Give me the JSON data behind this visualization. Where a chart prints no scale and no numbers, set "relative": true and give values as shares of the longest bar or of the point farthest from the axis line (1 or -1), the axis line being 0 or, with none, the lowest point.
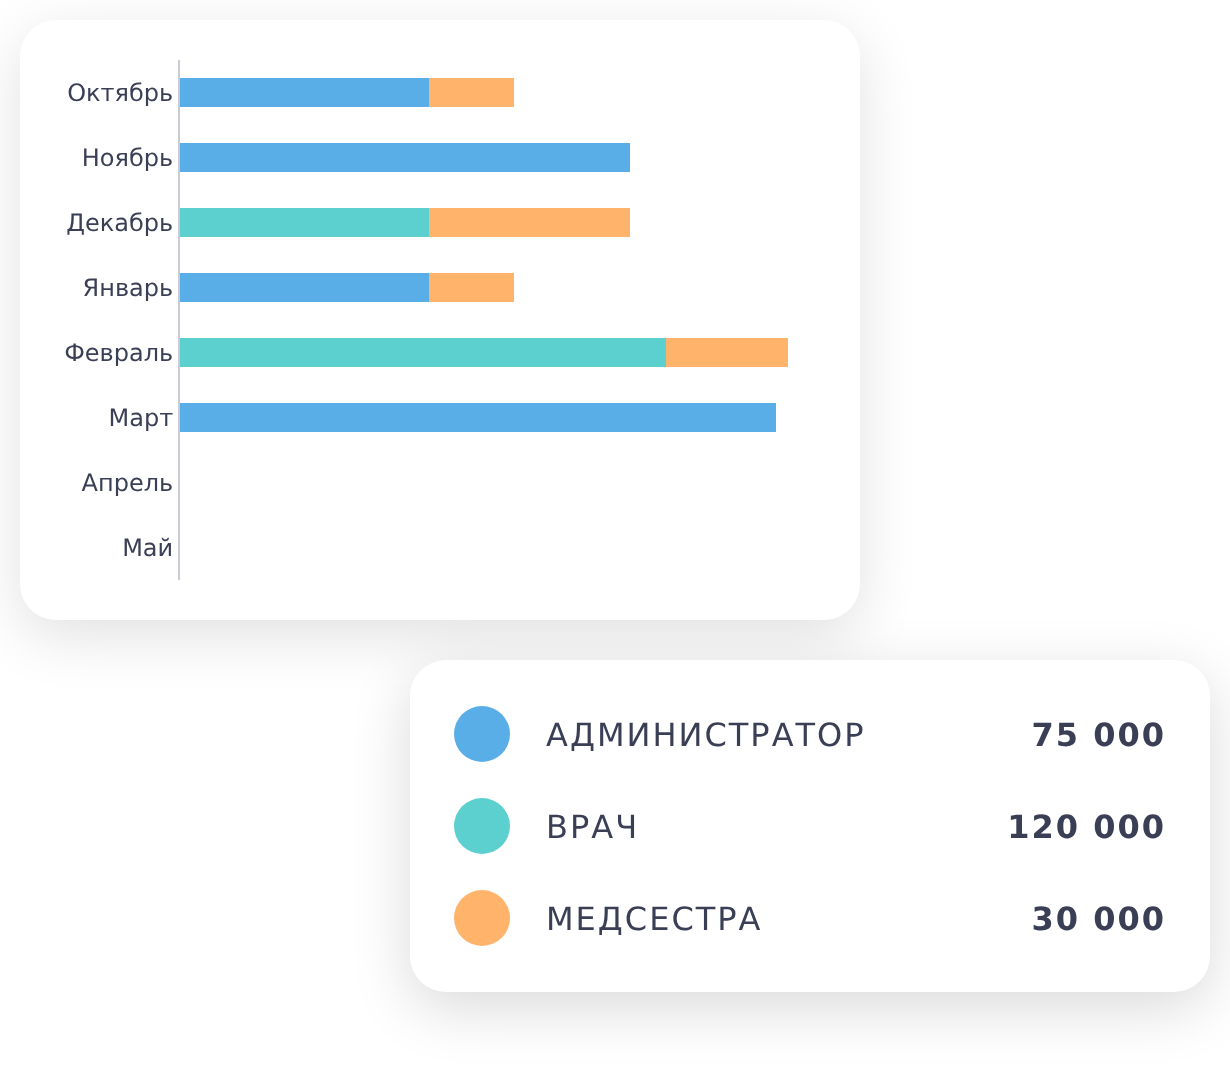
{
  "chart_data": {
    "type": "bar",
    "orientation": "horizontal",
    "stacked": true,
    "relative": true,
    "categories": [
      "Октябрь",
      "Ноябрь",
      "Декабрь",
      "Январь",
      "Февраль",
      "Март",
      "Апрель",
      "Май"
    ],
    "series": [
      {
        "name": "АДМИНИСТРАТОР",
        "color": "#5aaee8",
        "values": [
          0.41,
          0.74,
          null,
          0.41,
          null,
          0.98,
          null,
          null
        ]
      },
      {
        "name": "ВРАЧ",
        "color": "#5ccfcf",
        "values": [
          null,
          null,
          0.41,
          null,
          0.8,
          null,
          null,
          null
        ]
      },
      {
        "name": "МЕДСЕСТРА",
        "color": "#ffb36b",
        "values": [
          0.14,
          null,
          0.33,
          0.14,
          0.2,
          null,
          null,
          null
        ]
      }
    ],
    "annotations": [
      "75 000",
      "120 000",
      "30 000"
    ],
    "legend": "bottom right",
    "grid": false
  }
}
